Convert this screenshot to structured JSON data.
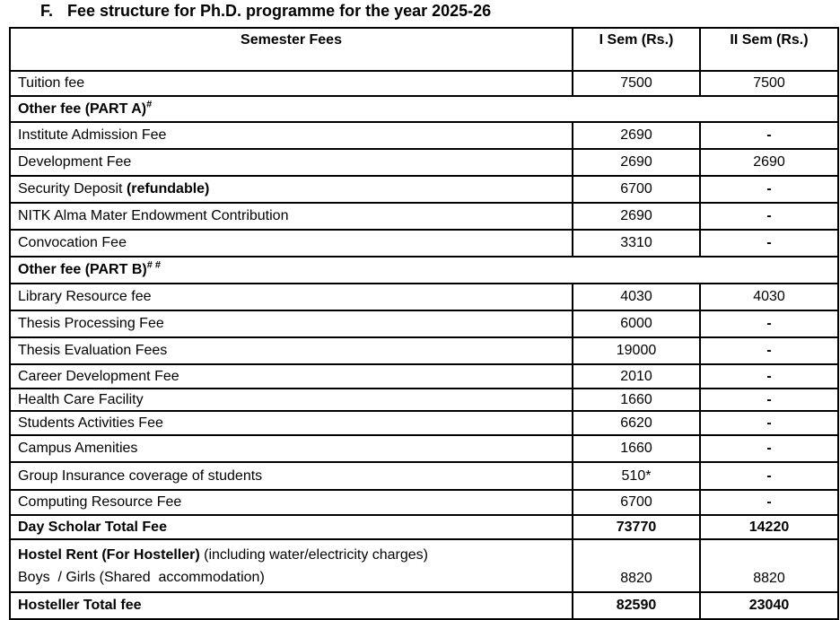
{
  "title": {
    "prefix": "F.",
    "text": "Fee structure for Ph.D. programme for the year 2025-26"
  },
  "table": {
    "columns": [
      "Semester Fees",
      "I Sem (Rs.)",
      "II Sem (Rs.)"
    ],
    "rows": [
      {
        "kind": "item",
        "label": [
          {
            "t": "Tuition fee",
            "b": false
          }
        ],
        "sem1": "7500",
        "sem2": "7500"
      },
      {
        "kind": "section",
        "label": [
          {
            "t": "Other fee (PART A)",
            "b": true
          }
        ],
        "sup": "#"
      },
      {
        "kind": "item",
        "label": [
          {
            "t": "Institute Admission Fee",
            "b": false
          }
        ],
        "sem1": "2690",
        "sem2": "-"
      },
      {
        "kind": "item",
        "label": [
          {
            "t": "Development Fee",
            "b": false
          }
        ],
        "sem1": "2690",
        "sem2": "2690"
      },
      {
        "kind": "item",
        "label": [
          {
            "t": "Security Deposit ",
            "b": false
          },
          {
            "t": "(refundable)",
            "b": true
          }
        ],
        "sem1": "6700",
        "sem2": "-"
      },
      {
        "kind": "item",
        "label": [
          {
            "t": "NITK Alma Mater Endowment Contribution",
            "b": false
          }
        ],
        "sem1": "2690",
        "sem2": "-"
      },
      {
        "kind": "item",
        "label": [
          {
            "t": "Convocation Fee",
            "b": false
          }
        ],
        "sem1": "3310",
        "sem2": "-"
      },
      {
        "kind": "section",
        "label": [
          {
            "t": "Other fee (PART B)",
            "b": true
          }
        ],
        "sup": "# #"
      },
      {
        "kind": "item",
        "label": [
          {
            "t": "Library Resource fee",
            "b": false
          }
        ],
        "sem1": "4030",
        "sem2": "4030"
      },
      {
        "kind": "item",
        "label": [
          {
            "t": "Thesis Processing Fee",
            "b": false
          }
        ],
        "sem1": "6000",
        "sem2": "-"
      },
      {
        "kind": "item",
        "label": [
          {
            "t": "Thesis Evaluation Fees",
            "b": false
          }
        ],
        "sem1": "19000",
        "sem2": "-"
      },
      {
        "kind": "item",
        "label": [
          {
            "t": "Career Development Fee",
            "b": false
          }
        ],
        "sem1": "2010",
        "sem2": "-"
      },
      {
        "kind": "item",
        "label": [
          {
            "t": "Health Care Facility",
            "b": false
          }
        ],
        "sem1": "1660",
        "sem2": "-"
      },
      {
        "kind": "item",
        "label": [
          {
            "t": "Students Activities Fee",
            "b": false
          }
        ],
        "sem1": "6620",
        "sem2": "-"
      },
      {
        "kind": "item",
        "label": [
          {
            "t": "Campus Amenities",
            "b": false
          }
        ],
        "sem1": "1660",
        "sem2": "-"
      },
      {
        "kind": "item",
        "label": [
          {
            "t": "Group Insurance coverage of students",
            "b": false
          }
        ],
        "sem1": "510*",
        "sem2": "-"
      },
      {
        "kind": "item",
        "label": [
          {
            "t": "Computing Resource Fee",
            "b": false
          }
        ],
        "sem1": "6700",
        "sem2": "-"
      },
      {
        "kind": "total",
        "label": [
          {
            "t": "Day Scholar Total Fee",
            "b": true
          }
        ],
        "sem1": "73770",
        "sem2": "14220"
      },
      {
        "kind": "hostel",
        "label": [
          {
            "t": "Hostel Rent (For Hosteller)",
            "b": true
          },
          {
            "t": " (including water/electricity charges)",
            "b": false
          }
        ],
        "label2": [
          {
            "t": "Boys  / Girls (Shared  accommodation)",
            "b": false
          }
        ],
        "sem1": "8820",
        "sem2": "8820"
      },
      {
        "kind": "total",
        "label": [
          {
            "t": "Hosteller Total fee",
            "b": true
          }
        ],
        "sem1": "82590",
        "sem2": "23040"
      }
    ]
  }
}
